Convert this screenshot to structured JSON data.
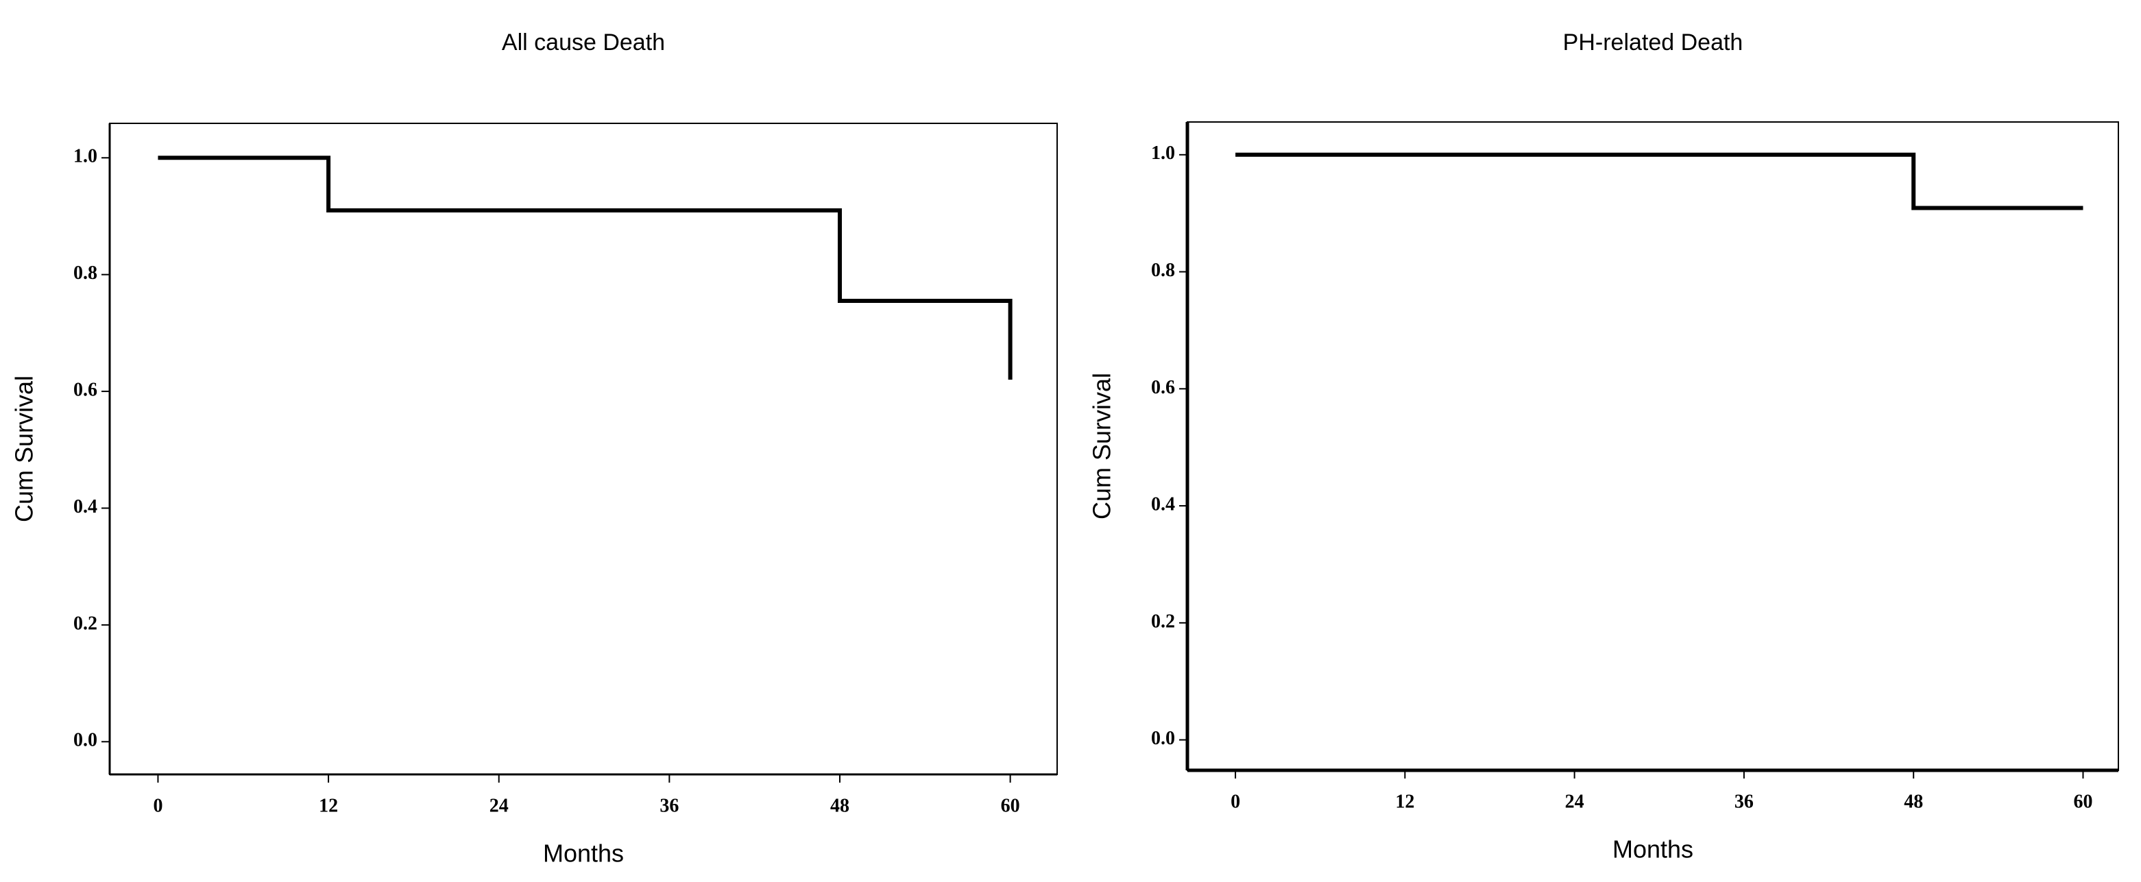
{
  "chart_data": [
    {
      "type": "step",
      "title": "All cause Death",
      "xlabel": "Months",
      "ylabel": "Cum Survival",
      "x": [
        0,
        12,
        48,
        60
      ],
      "values": [
        1.0,
        0.91,
        0.755,
        0.62
      ],
      "color": "#000000",
      "xlim": [
        -3.4,
        63.3
      ],
      "ylim": [
        -0.056,
        1.059
      ],
      "xticks": [
        0,
        12,
        24,
        36,
        48,
        60
      ],
      "yticks": [
        {
          "value": 0,
          "label": "0.0"
        },
        0.2,
        0.4,
        0.6,
        0.8,
        {
          "value": 1,
          "label": "1.0"
        }
      ]
    },
    {
      "type": "step",
      "title": "PH-related Death",
      "xlabel": "Months",
      "ylabel": "Cum Survival",
      "x": [
        0,
        48,
        60
      ],
      "values": [
        1.0,
        0.909,
        0.909
      ],
      "color": "#000000",
      "xlim": [
        -3.4,
        62.5
      ],
      "ylim": [
        -0.052,
        1.056
      ],
      "xticks": [
        0,
        12,
        24,
        36,
        48,
        60
      ],
      "yticks": [
        {
          "value": 0,
          "label": "0.0"
        },
        0.2,
        0.4,
        0.6,
        0.8,
        {
          "value": 1,
          "label": "1.0"
        }
      ]
    }
  ]
}
